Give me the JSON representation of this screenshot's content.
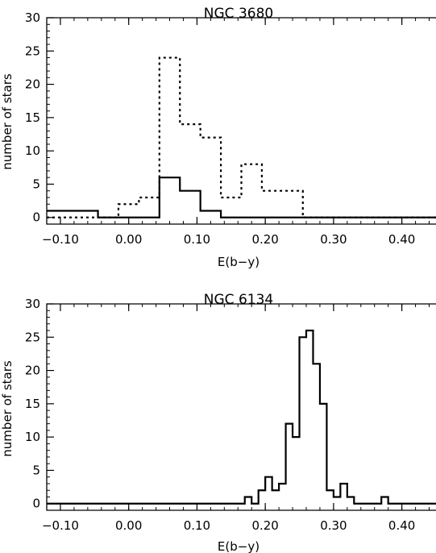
{
  "chart_data": [
    {
      "type": "histogram",
      "title": "NGC 3680",
      "xlabel": "E(b−y)",
      "ylabel": "number of stars",
      "xlim": [
        -0.12,
        0.45
      ],
      "ylim": [
        -1,
        30
      ],
      "x_ticks": [
        -0.1,
        0.0,
        0.1,
        0.2,
        0.3,
        0.4
      ],
      "x_tick_labels": [
        "−0.10",
        "0.00",
        "0.10",
        "0.20",
        "0.30",
        "0.40"
      ],
      "y_ticks": [
        0,
        5,
        10,
        15,
        20,
        25,
        30
      ],
      "y_tick_labels": [
        "0",
        "5",
        "10",
        "15",
        "20",
        "25",
        "30"
      ],
      "grid": false,
      "series": [
        {
          "style": "solid",
          "bin_edges": [
            -0.12,
            -0.045,
            0.045,
            0.075,
            0.105,
            0.135,
            0.45
          ],
          "counts": [
            1,
            0,
            6,
            4,
            1,
            0
          ]
        },
        {
          "style": "dotted",
          "bin_edges": [
            -0.12,
            -0.015,
            0.015,
            0.045,
            0.075,
            0.105,
            0.135,
            0.165,
            0.195,
            0.255,
            0.45
          ],
          "counts": [
            0,
            2,
            3,
            24,
            14,
            12,
            3,
            8,
            4,
            0
          ]
        }
      ]
    },
    {
      "type": "histogram",
      "title": "NGC 6134",
      "xlabel": "E(b−y)",
      "ylabel": "number of stars",
      "xlim": [
        -0.12,
        0.45
      ],
      "ylim": [
        -1,
        30
      ],
      "x_ticks": [
        -0.1,
        0.0,
        0.1,
        0.2,
        0.3,
        0.4
      ],
      "x_tick_labels": [
        "−0.10",
        "0.00",
        "0.10",
        "0.20",
        "0.30",
        "0.40"
      ],
      "y_ticks": [
        0,
        5,
        10,
        15,
        20,
        25,
        30
      ],
      "y_tick_labels": [
        "0",
        "5",
        "10",
        "15",
        "20",
        "25",
        "30"
      ],
      "grid": false,
      "series": [
        {
          "style": "solid",
          "bin_edges": [
            -0.12,
            0.17,
            0.18,
            0.19,
            0.2,
            0.21,
            0.22,
            0.23,
            0.24,
            0.25,
            0.26,
            0.27,
            0.28,
            0.29,
            0.3,
            0.31,
            0.32,
            0.33,
            0.37,
            0.38,
            0.45
          ],
          "counts": [
            0,
            1,
            0,
            2,
            4,
            2,
            3,
            12,
            10,
            25,
            26,
            21,
            15,
            2,
            1,
            3,
            1,
            0,
            1,
            0
          ]
        }
      ]
    }
  ]
}
